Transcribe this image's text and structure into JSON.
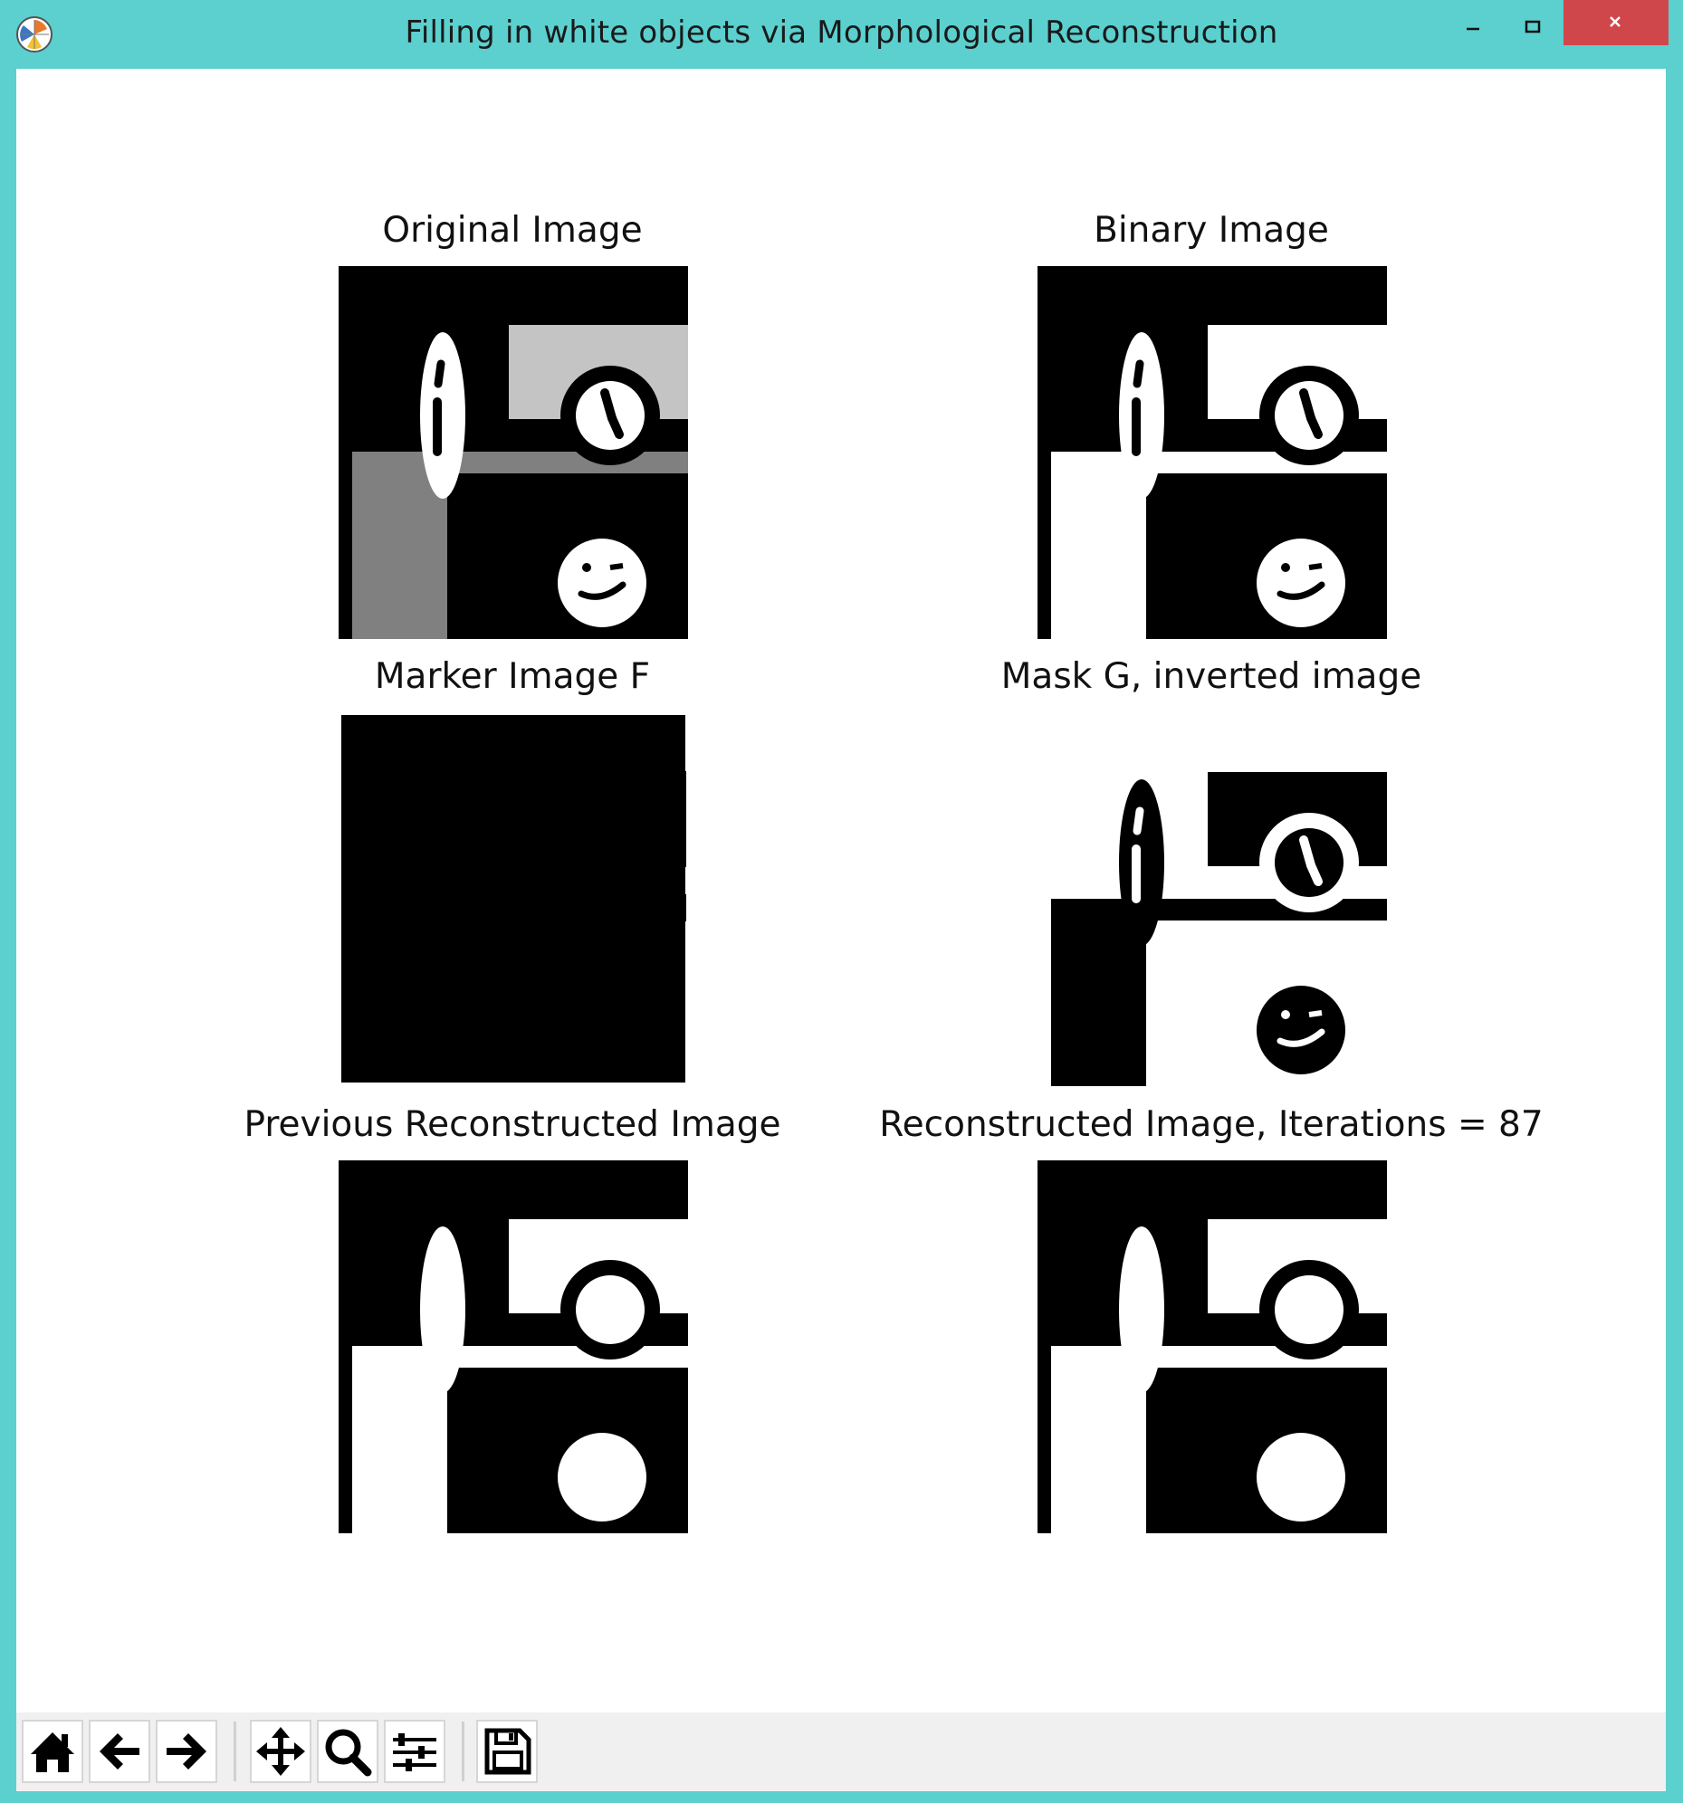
{
  "window": {
    "title": "Filling in white objects via Morphological Reconstruction",
    "colors": {
      "frame": "#5ccfcf",
      "close_button": "#d0474b",
      "canvas": "#ffffff",
      "toolbar": "#f0f0f0"
    }
  },
  "titlebar_buttons": {
    "minimize": "–",
    "maximize": "□",
    "close": "×"
  },
  "panels": [
    {
      "title": "Original Image"
    },
    {
      "title": "Binary Image"
    },
    {
      "title": "Marker Image F"
    },
    {
      "title": "Mask G, inverted image"
    },
    {
      "title": "Previous Reconstructed Image"
    },
    {
      "title": "Reconstructed Image, Iterations = 87"
    }
  ],
  "toolbar": {
    "buttons": [
      {
        "icon": "home-icon"
      },
      {
        "icon": "arrow-left-icon"
      },
      {
        "icon": "arrow-right-icon"
      },
      {
        "icon": "pan-icon"
      },
      {
        "icon": "zoom-icon"
      },
      {
        "icon": "sliders-icon"
      },
      {
        "icon": "save-icon"
      }
    ]
  }
}
